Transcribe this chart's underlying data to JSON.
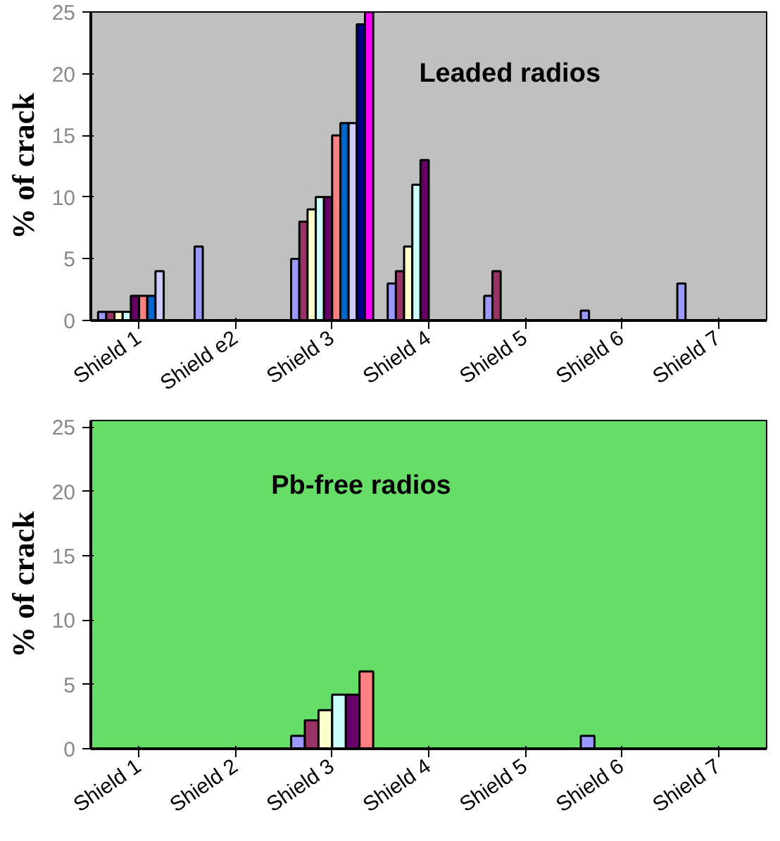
{
  "chart_data": [
    {
      "type": "bar",
      "title": "Leaded radios",
      "ylabel": "% of crack",
      "categories": [
        "Shield 1",
        "Shield e2",
        "Shield 3",
        "Shield 4",
        "Shield 5",
        "Shield 6",
        "Shield 7"
      ],
      "series": [
        {
          "color": "#9999ff",
          "values": [
            0.7,
            6,
            5,
            3,
            2,
            0.8,
            3
          ]
        },
        {
          "color": "#993366",
          "values": [
            0.7,
            null,
            8,
            4,
            4,
            null,
            null
          ]
        },
        {
          "color": "#ffffcc",
          "values": [
            0.7,
            null,
            9,
            6,
            null,
            null,
            null
          ]
        },
        {
          "color": "#ccffff",
          "values": [
            0.7,
            null,
            10,
            11,
            null,
            null,
            null
          ]
        },
        {
          "color": "#660066",
          "values": [
            2,
            null,
            10,
            13,
            null,
            null,
            null
          ]
        },
        {
          "color": "#ff8080",
          "values": [
            2,
            null,
            15,
            null,
            null,
            null,
            null
          ]
        },
        {
          "color": "#0066cc",
          "values": [
            2,
            null,
            16,
            null,
            null,
            null,
            null
          ]
        },
        {
          "color": "#ccccff",
          "values": [
            4,
            null,
            16,
            null,
            null,
            null,
            null
          ]
        },
        {
          "color": "#000080",
          "values": [
            null,
            null,
            24,
            null,
            null,
            null,
            null
          ]
        },
        {
          "color": "#ff00ff",
          "values": [
            null,
            null,
            25,
            null,
            null,
            null,
            null
          ]
        }
      ],
      "ylim": [
        0,
        25
      ],
      "yticks": [
        0,
        5,
        10,
        15,
        20,
        25
      ],
      "grid": false
    },
    {
      "type": "bar",
      "title": "Pb-free radios",
      "ylabel": "% of crack",
      "categories": [
        "Shield 1",
        "Shield 2",
        "Shield 3",
        "Shield 4",
        "Shield 5",
        "Shield 6",
        "Shield 7"
      ],
      "series": [
        {
          "color": "#9999ff",
          "values": [
            null,
            null,
            1,
            null,
            null,
            1,
            null
          ]
        },
        {
          "color": "#993366",
          "values": [
            null,
            null,
            2.2,
            null,
            null,
            null,
            null
          ]
        },
        {
          "color": "#ffffcc",
          "values": [
            null,
            null,
            3,
            null,
            null,
            null,
            null
          ]
        },
        {
          "color": "#ccffff",
          "values": [
            null,
            null,
            4.2,
            null,
            null,
            null,
            null
          ]
        },
        {
          "color": "#660066",
          "values": [
            null,
            null,
            4.2,
            null,
            null,
            null,
            null
          ]
        },
        {
          "color": "#ff8080",
          "values": [
            null,
            null,
            6,
            null,
            null,
            null,
            null
          ]
        }
      ],
      "ylim": [
        0,
        25.5
      ],
      "yticks": [
        0,
        5,
        10,
        15,
        20,
        25
      ],
      "grid": false
    }
  ]
}
